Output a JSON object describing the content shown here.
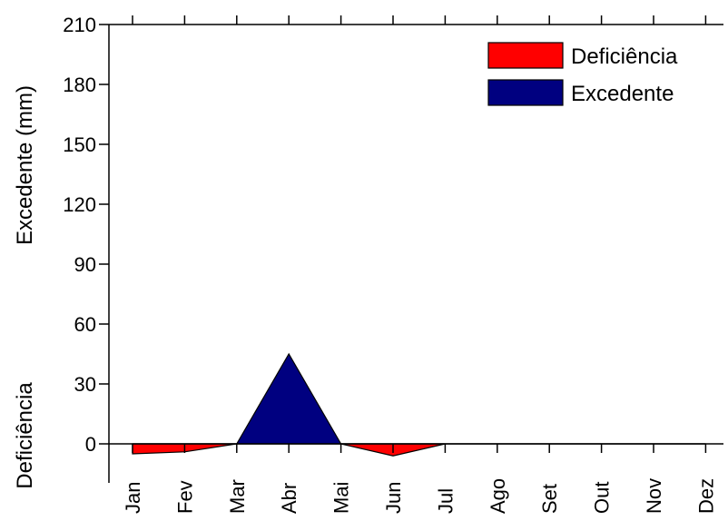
{
  "chart_data": {
    "type": "area",
    "categories": [
      "Jan",
      "Fev",
      "Mar",
      "Abr",
      "Mai",
      "Jun",
      "Jul",
      "Ago",
      "Set",
      "Out",
      "Nov",
      "Dez"
    ],
    "series": [
      {
        "name": "Deficiência",
        "values": [
          -5,
          -4,
          0,
          0,
          0,
          -6,
          0,
          0,
          0,
          0,
          0,
          0
        ],
        "color": "#ff0000"
      },
      {
        "name": "Excedente",
        "values": [
          0,
          0,
          0,
          45,
          0,
          0,
          0,
          0,
          0,
          0,
          0,
          0
        ],
        "color": "#000080"
      }
    ],
    "ylabel_top": "Excedente (mm)",
    "ylabel_bottom": "Deficiência",
    "yticks": [
      0,
      30,
      60,
      90,
      120,
      150,
      180,
      210
    ],
    "ylim": [
      -12,
      210
    ],
    "grid": false,
    "legend_position": "top-right"
  }
}
